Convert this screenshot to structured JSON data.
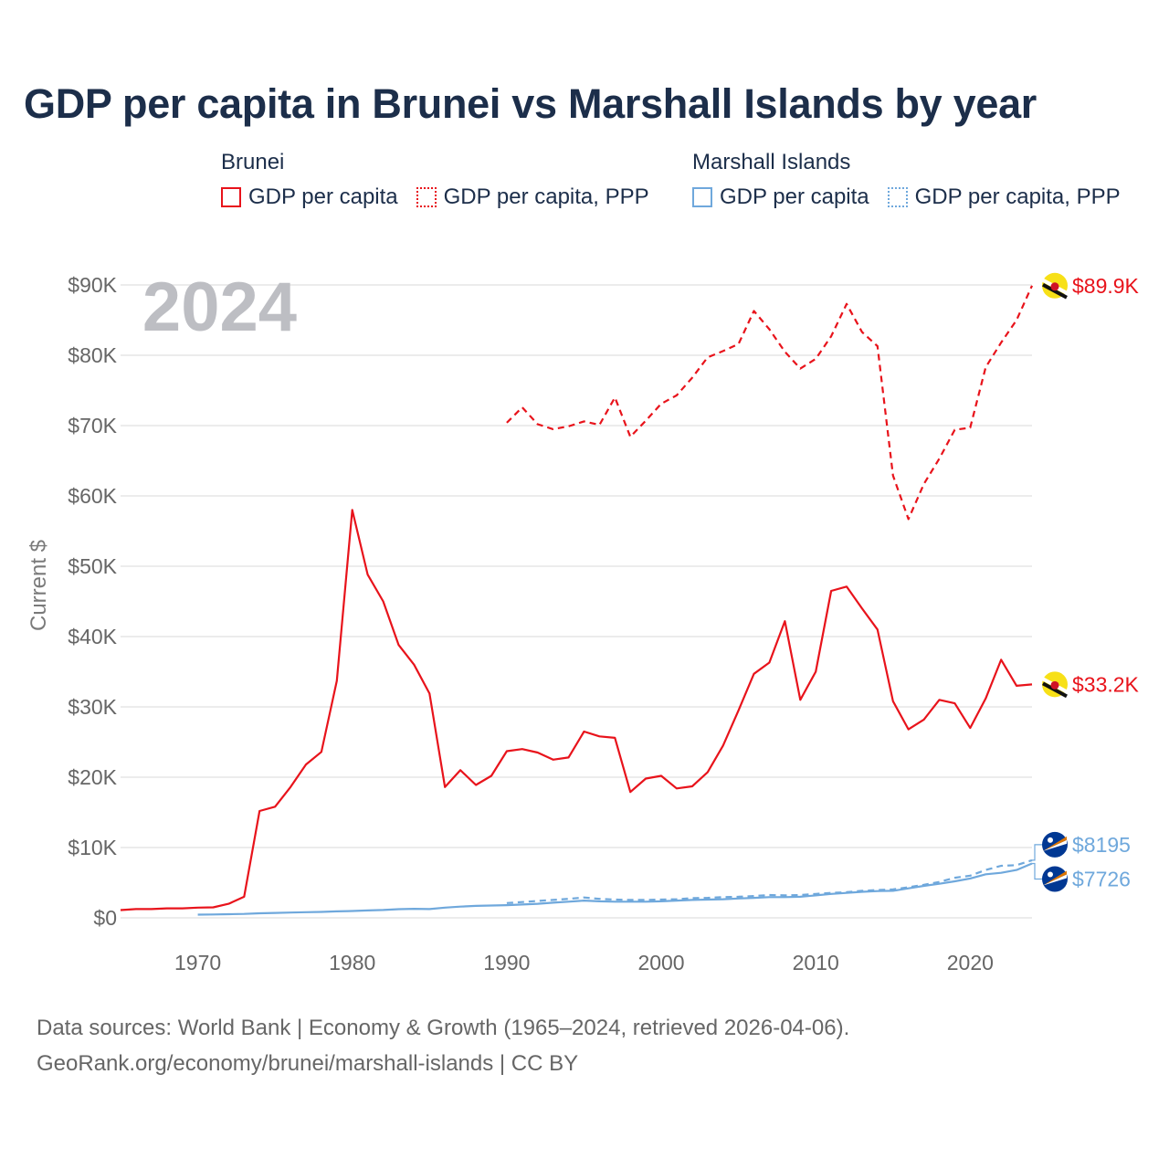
{
  "chart_data": {
    "type": "line",
    "title": "GDP per capita in Brunei vs Marshall Islands by year",
    "ylabel": "Current $",
    "xlabel": "",
    "year_label": "2024",
    "xlim": [
      1965,
      2024
    ],
    "ylim": [
      0,
      90000
    ],
    "x_ticks": [
      1970,
      1980,
      1990,
      2000,
      2010,
      2020
    ],
    "y_ticks": [
      {
        "value": 0,
        "label": "$0"
      },
      {
        "value": 10000,
        "label": "$10K"
      },
      {
        "value": 20000,
        "label": "$20K"
      },
      {
        "value": 30000,
        "label": "$30K"
      },
      {
        "value": 40000,
        "label": "$40K"
      },
      {
        "value": 50000,
        "label": "$50K"
      },
      {
        "value": 60000,
        "label": "$60K"
      },
      {
        "value": 70000,
        "label": "$70K"
      },
      {
        "value": 80000,
        "label": "$80K"
      },
      {
        "value": 90000,
        "label": "$90K"
      }
    ],
    "legend": [
      {
        "group": "Brunei",
        "items": [
          {
            "label": "GDP per capita",
            "style": "solid",
            "color": "#e8131b"
          },
          {
            "label": "GDP per capita, PPP",
            "style": "dotted",
            "color": "#e8131b"
          }
        ]
      },
      {
        "group": "Marshall Islands",
        "items": [
          {
            "label": "GDP per capita",
            "style": "solid",
            "color": "#6fa8dc"
          },
          {
            "label": "GDP per capita, PPP",
            "style": "dotted",
            "color": "#6fa8dc"
          }
        ]
      }
    ],
    "series": [
      {
        "name": "Brunei GDP per capita",
        "country": "Brunei",
        "color": "#e8131b",
        "dash": "solid",
        "end_label": "$33.2K",
        "flag": "brunei-flag-icon",
        "x": [
          1965,
          1966,
          1967,
          1968,
          1969,
          1970,
          1971,
          1972,
          1973,
          1974,
          1975,
          1976,
          1977,
          1978,
          1979,
          1980,
          1981,
          1982,
          1983,
          1984,
          1985,
          1986,
          1987,
          1988,
          1989,
          1990,
          1991,
          1992,
          1993,
          1994,
          1995,
          1996,
          1997,
          1998,
          1999,
          2000,
          2001,
          2002,
          2003,
          2004,
          2005,
          2006,
          2007,
          2008,
          2009,
          2010,
          2011,
          2012,
          2013,
          2014,
          2015,
          2016,
          2017,
          2018,
          2019,
          2020,
          2021,
          2022,
          2023,
          2024
        ],
        "values": [
          1100,
          1250,
          1250,
          1350,
          1350,
          1450,
          1500,
          2000,
          3000,
          15200,
          15800,
          18600,
          21800,
          23600,
          33700,
          58000,
          48800,
          45000,
          38800,
          36000,
          31900,
          18600,
          21000,
          18900,
          20200,
          23700,
          24000,
          23500,
          22500,
          22800,
          26500,
          25800,
          25600,
          17900,
          19800,
          20200,
          18400,
          18700,
          20700,
          24500,
          29500,
          34700,
          36300,
          42200,
          31000,
          35000,
          46500,
          47100,
          44000,
          41000,
          30800,
          26800,
          28200,
          31000,
          30500,
          27000,
          31200,
          36700,
          33000,
          33200
        ]
      },
      {
        "name": "Brunei GDP per capita, PPP",
        "country": "Brunei",
        "color": "#e8131b",
        "dash": "dashed",
        "end_label": "$89.9K",
        "flag": "brunei-flag-icon",
        "x": [
          1990,
          1991,
          1992,
          1993,
          1994,
          1995,
          1996,
          1997,
          1998,
          1999,
          2000,
          2001,
          2002,
          2003,
          2004,
          2005,
          2006,
          2007,
          2008,
          2009,
          2010,
          2011,
          2012,
          2013,
          2014,
          2015,
          2016,
          2017,
          2018,
          2019,
          2020,
          2021,
          2022,
          2023,
          2024
        ],
        "values": [
          70400,
          72600,
          70200,
          69500,
          69900,
          70600,
          70100,
          74000,
          68400,
          70700,
          73100,
          74300,
          76800,
          79700,
          80600,
          81600,
          86300,
          83700,
          80500,
          78100,
          79500,
          82700,
          87300,
          83300,
          81300,
          62900,
          56700,
          61700,
          65300,
          69400,
          69700,
          78300,
          81800,
          85000,
          89900
        ]
      },
      {
        "name": "Marshall Islands GDP per capita",
        "country": "Marshall Islands",
        "color": "#6fa8dc",
        "dash": "solid",
        "end_label": "$7726",
        "flag": "marshall-islands-flag-icon",
        "x": [
          1970,
          1971,
          1972,
          1973,
          1974,
          1975,
          1976,
          1977,
          1978,
          1979,
          1980,
          1981,
          1982,
          1983,
          1984,
          1985,
          1986,
          1987,
          1988,
          1989,
          1990,
          1991,
          1992,
          1993,
          1994,
          1995,
          1996,
          1997,
          1998,
          1999,
          2000,
          2001,
          2002,
          2003,
          2004,
          2005,
          2006,
          2007,
          2008,
          2009,
          2010,
          2011,
          2012,
          2013,
          2014,
          2015,
          2016,
          2017,
          2018,
          2019,
          2020,
          2021,
          2022,
          2023,
          2024
        ],
        "values": [
          450,
          480,
          520,
          560,
          650,
          700,
          750,
          800,
          850,
          920,
          980,
          1050,
          1120,
          1230,
          1280,
          1250,
          1450,
          1600,
          1700,
          1750,
          1800,
          1900,
          2000,
          2150,
          2300,
          2450,
          2350,
          2300,
          2300,
          2300,
          2350,
          2450,
          2550,
          2600,
          2650,
          2750,
          2850,
          2950,
          2950,
          3000,
          3200,
          3400,
          3550,
          3700,
          3800,
          3850,
          4200,
          4550,
          4850,
          5200,
          5600,
          6200,
          6400,
          6800,
          7726
        ]
      },
      {
        "name": "Marshall Islands GDP per capita, PPP",
        "country": "Marshall Islands",
        "color": "#6fa8dc",
        "dash": "dashed",
        "end_label": "$8195",
        "flag": "marshall-islands-flag-icon",
        "x": [
          1990,
          1991,
          1992,
          1993,
          1994,
          1995,
          1996,
          1997,
          1998,
          1999,
          2000,
          2001,
          2002,
          2003,
          2004,
          2005,
          2006,
          2007,
          2008,
          2009,
          2010,
          2011,
          2012,
          2013,
          2014,
          2015,
          2016,
          2017,
          2018,
          2019,
          2020,
          2021,
          2022,
          2023,
          2024
        ],
        "values": [
          2100,
          2250,
          2400,
          2550,
          2700,
          2900,
          2700,
          2600,
          2550,
          2550,
          2600,
          2650,
          2800,
          2850,
          2950,
          3000,
          3100,
          3250,
          3200,
          3250,
          3400,
          3550,
          3650,
          3850,
          3950,
          4050,
          4350,
          4700,
          5100,
          5700,
          6000,
          6800,
          7400,
          7500,
          8195
        ]
      }
    ]
  },
  "footer": {
    "line1": "Data sources: World Bank | Economy & Growth (1965–2024, retrieved 2026-04-06).",
    "line2": "GeoRank.org/economy/brunei/marshall-islands | CC BY"
  }
}
